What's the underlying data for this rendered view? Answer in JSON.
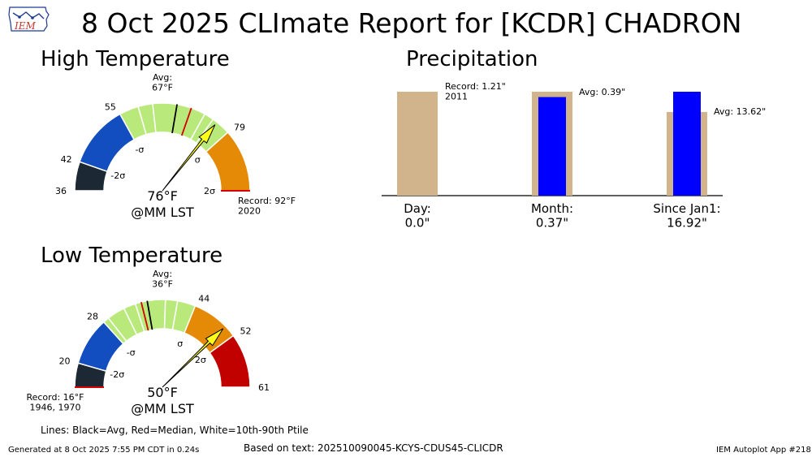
{
  "header": {
    "logo_text": "IEM",
    "title": "8 Oct 2025 CLImate Report for [KCDR] CHADRON"
  },
  "sections": {
    "high": "High Temperature",
    "low": "Low Temperature",
    "precip": "Precipitation"
  },
  "footer": {
    "generated": "Generated at 8 Oct 2025 7:55 PM CDT in 0.24s",
    "based_on": "Based on text: 202510090045-KCYS-CDUS45-CLICDR",
    "app": "IEM Autoplot App #218",
    "legend_note": "Lines: Black=Avg, Red=Median, White=10th-90th Ptile"
  },
  "colors": {
    "gauge_dark": "#1c2833",
    "gauge_blue": "#134ec0",
    "gauge_green": "#b8e97a",
    "gauge_orange": "#e58a06",
    "gauge_red": "#c10000",
    "needle": "#ffff19",
    "precip_record": "#d2b48c",
    "precip_obs": "#0000ff"
  },
  "chart_data": [
    {
      "type": "gauge",
      "name": "High Temperature",
      "range": [
        36,
        92
      ],
      "bands": [
        {
          "from": 36,
          "to": 42,
          "color": "dark"
        },
        {
          "from": 42,
          "to": 55,
          "color": "blue"
        },
        {
          "from": 55,
          "to": 79,
          "color": "green"
        },
        {
          "from": 79,
          "to": 92,
          "color": "orange"
        }
      ],
      "tick_labels": [
        {
          "value": 36,
          "label": "36"
        },
        {
          "value": 42,
          "label": "42"
        },
        {
          "value": 55,
          "label": "55"
        },
        {
          "value": 79,
          "label": "79"
        }
      ],
      "sigma_labels": [
        {
          "value": 42,
          "label": "-2σ"
        },
        {
          "value": 55,
          "label": "-σ"
        },
        {
          "value": 79,
          "label": "σ"
        },
        {
          "value": 92,
          "label": "2σ"
        }
      ],
      "avg": 67,
      "avg_label": "Avg:\n67°F",
      "median": 70,
      "percentile_lines": [
        59,
        62,
        73,
        75
      ],
      "observed": 76,
      "observed_label": "76°F",
      "observed_time": "@MM LST",
      "record": 92,
      "record_label": "Record: 92°F\n2020"
    },
    {
      "type": "gauge",
      "name": "Low Temperature",
      "range": [
        16,
        61
      ],
      "bands": [
        {
          "from": 16,
          "to": 20,
          "color": "dark"
        },
        {
          "from": 20,
          "to": 28,
          "color": "blue"
        },
        {
          "from": 28,
          "to": 44,
          "color": "green"
        },
        {
          "from": 44,
          "to": 52,
          "color": "orange"
        },
        {
          "from": 52,
          "to": 61,
          "color": "red"
        }
      ],
      "tick_labels": [
        {
          "value": 20,
          "label": "20"
        },
        {
          "value": 28,
          "label": "28"
        },
        {
          "value": 44,
          "label": "44"
        },
        {
          "value": 52,
          "label": "52"
        },
        {
          "value": 61,
          "label": "61"
        }
      ],
      "sigma_labels": [
        {
          "value": 20,
          "label": "-2σ"
        },
        {
          "value": 28,
          "label": "-σ"
        },
        {
          "value": 44,
          "label": "σ"
        },
        {
          "value": 52,
          "label": "2σ"
        }
      ],
      "avg": 36,
      "avg_label": "Avg:\n36°F",
      "median": 35,
      "percentile_lines": [
        29,
        32,
        34,
        39,
        41
      ],
      "observed": 50,
      "observed_label": "50°F",
      "observed_time": "@MM LST",
      "record": 16,
      "record_label": "Record: 16°F\n1946, 1970"
    },
    {
      "type": "bar",
      "name": "Precipitation",
      "categories": [
        "Day:\n0.0\"",
        "Month:\n0.37\"",
        "Since Jan1:\n16.92\""
      ],
      "series": [
        {
          "name": "Record",
          "values": [
            1.21,
            null,
            null
          ]
        },
        {
          "name": "Avg",
          "values": [
            null,
            0.39,
            13.62
          ]
        },
        {
          "name": "Observed",
          "values": [
            0.0,
            0.37,
            16.92
          ]
        }
      ],
      "annotations": [
        "Record: 1.21\"\n2011",
        "Avg: 0.39\"",
        "Avg: 13.62\""
      ]
    }
  ]
}
